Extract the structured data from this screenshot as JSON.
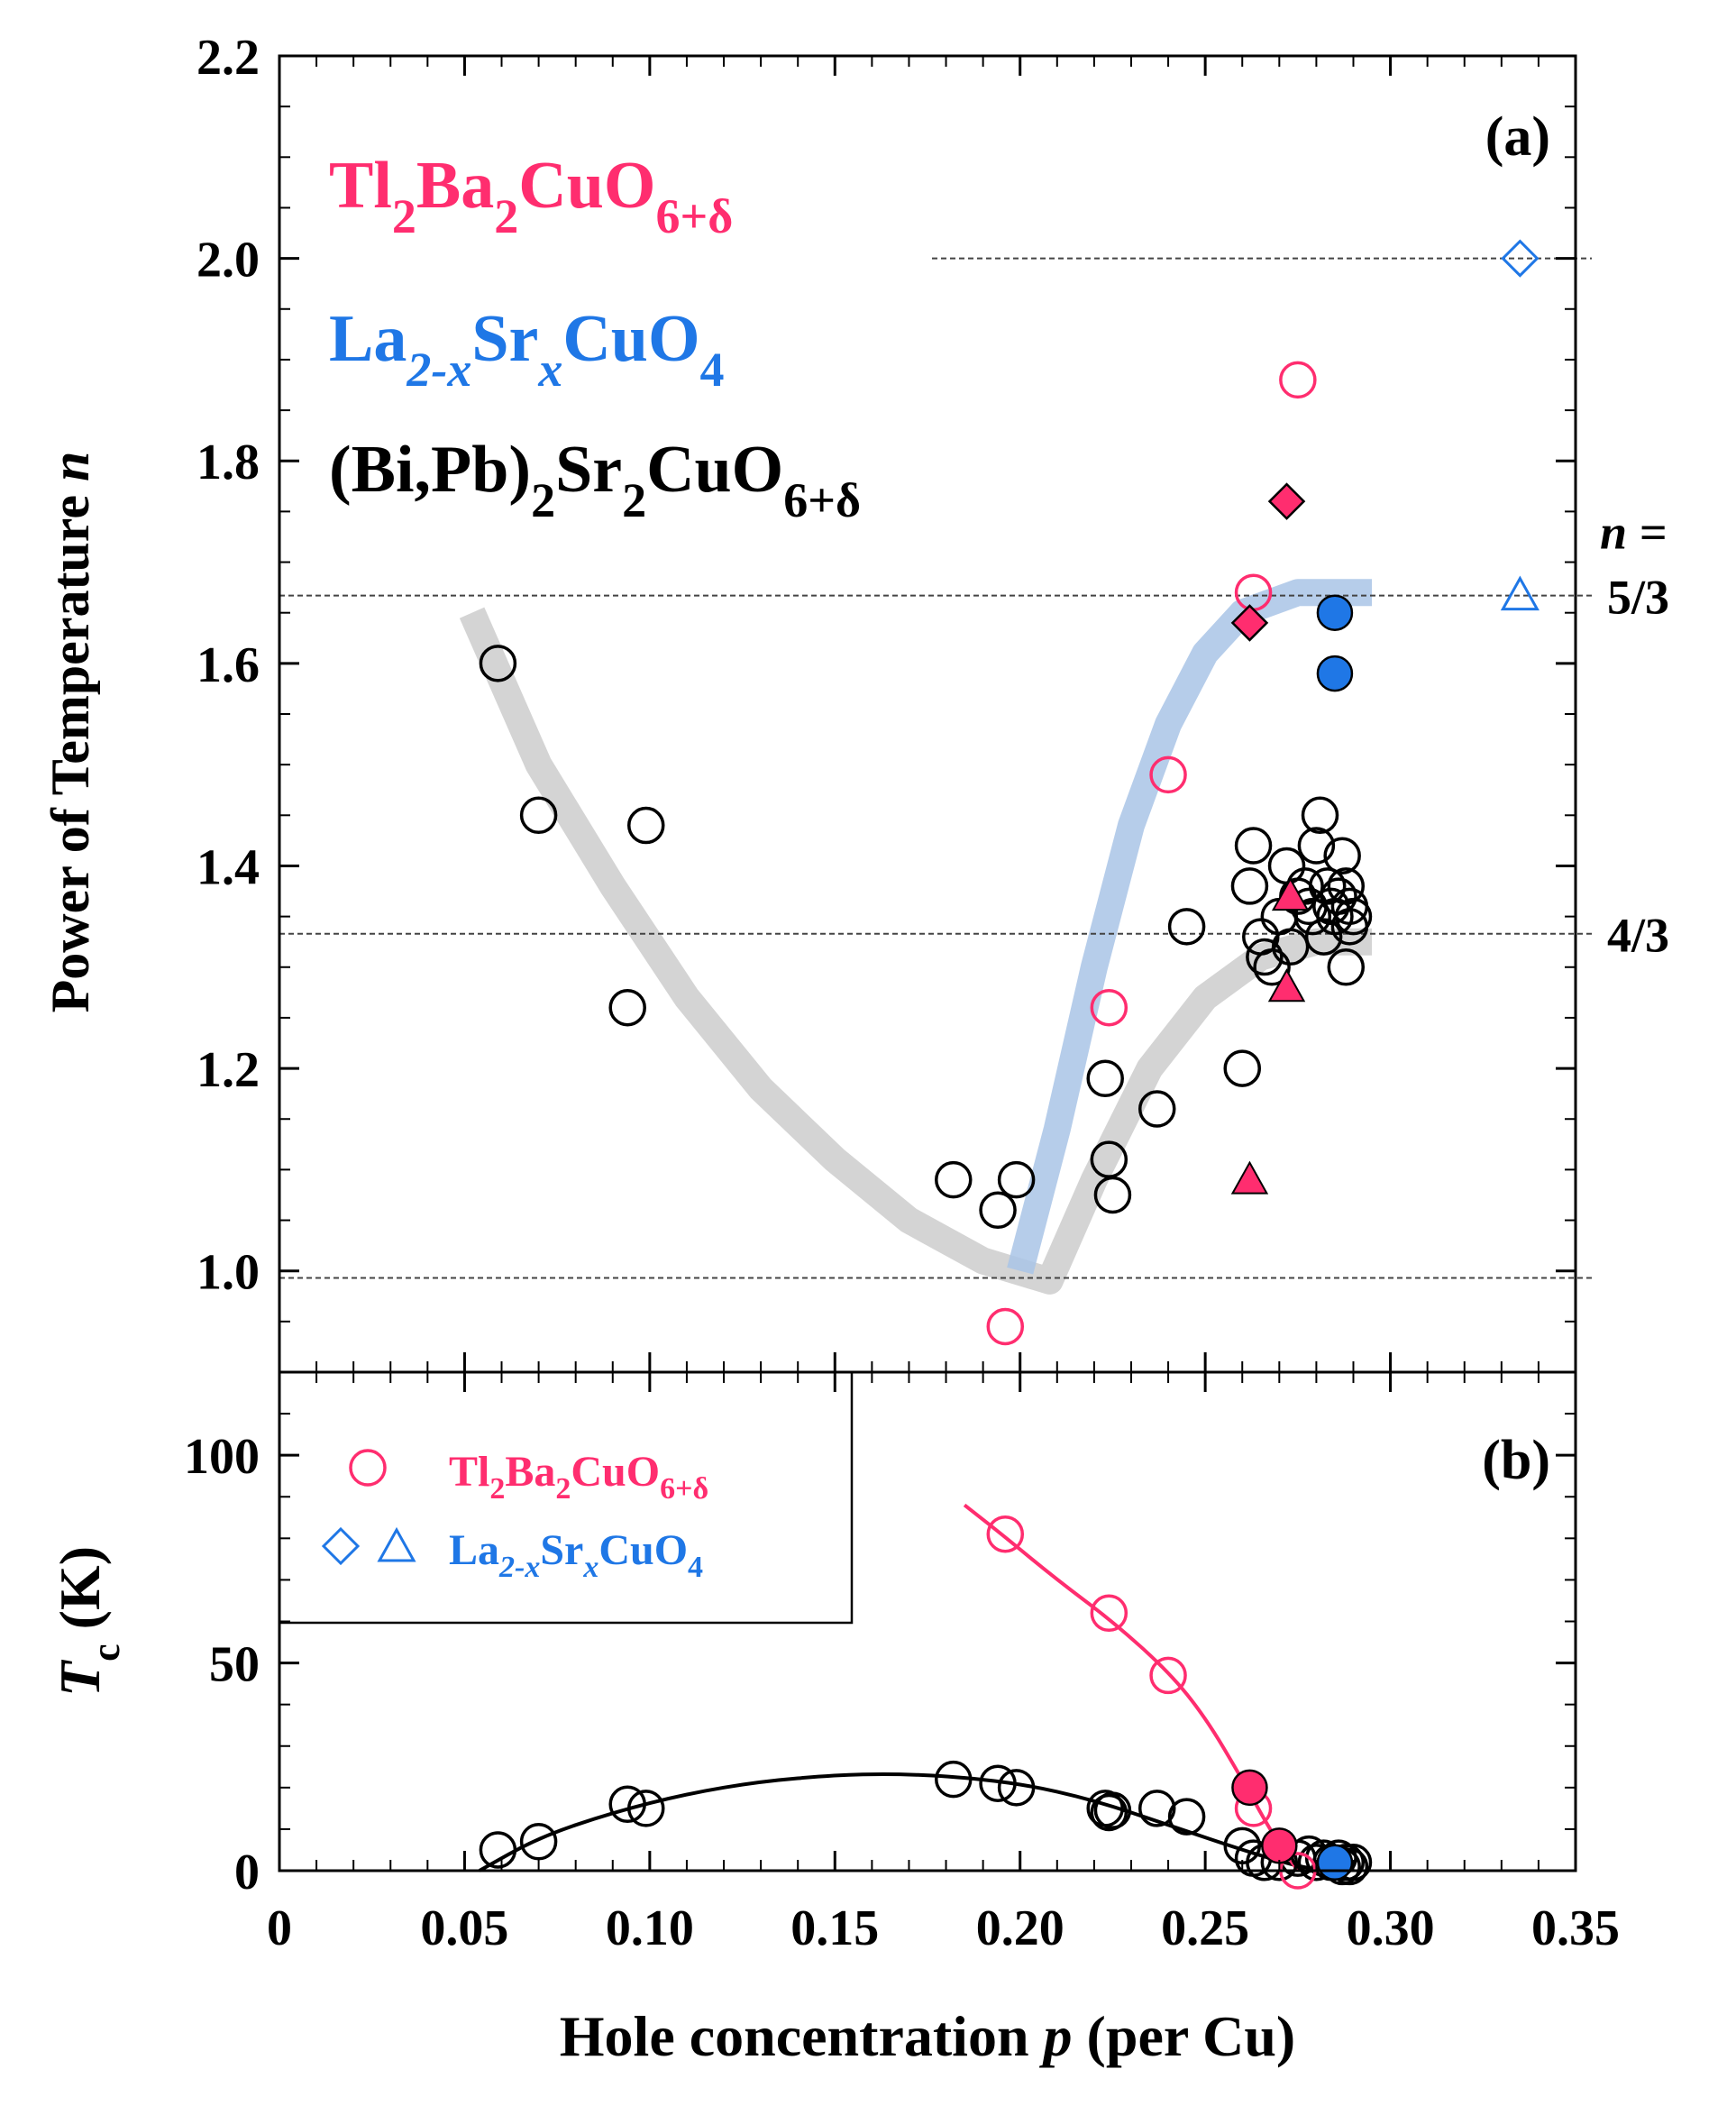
{
  "colors": {
    "tl": "#ff2d6f",
    "la": "#1f77e6",
    "bi": "#000000",
    "bi_band": "#cfcfcf",
    "la_band": "#a9c4e6"
  },
  "chart_data": [
    {
      "panel": "(a)",
      "type": "scatter",
      "ylabel": "Power of Temperature n",
      "ylabel_text": "Power of Temperature ",
      "ylabel_var": "n",
      "xlim": [
        0,
        0.35
      ],
      "ylim": [
        0.9,
        2.2
      ],
      "yticks": [
        1.0,
        1.2,
        1.4,
        1.6,
        1.8,
        2.0,
        2.2
      ],
      "ytick_labels": [
        "1.0",
        "1.2",
        "1.4",
        "1.6",
        "1.8",
        "2.0",
        "2.2"
      ],
      "reference_lines": [
        {
          "y": 2.0,
          "x_from": 0.175
        },
        {
          "y": 1.667,
          "label_var": "n =",
          "label": "5/3"
        },
        {
          "y": 1.333,
          "label": "4/3"
        },
        {
          "y": 0.993
        }
      ],
      "legend": [
        {
          "series": "Tl2Ba2CuO6+δ",
          "base": "Tl",
          "sub1": "2",
          "mid": "Ba",
          "sub2": "2",
          "mid2": "CuO",
          "sub3": "6+δ",
          "color": "#ff2d6f"
        },
        {
          "series": "La2-xSrxCuO4",
          "base": "La",
          "sub1": "2-x",
          "mid": "Sr",
          "sub2": "x",
          "mid2": "CuO",
          "sub3": "4",
          "color": "#1f77e6"
        },
        {
          "series": "(Bi,Pb)2Sr2CuO6+δ",
          "base": "(Bi,Pb)",
          "sub1": "2",
          "mid": "Sr",
          "sub2": "2",
          "mid2": "CuO",
          "sub3": "6+δ",
          "color": "#000000"
        }
      ],
      "trend_bands": [
        {
          "name": "Bi guide",
          "color": "#cfcfcf",
          "points": [
            [
              0.052,
              1.65
            ],
            [
              0.07,
              1.5
            ],
            [
              0.09,
              1.38
            ],
            [
              0.11,
              1.27
            ],
            [
              0.13,
              1.18
            ],
            [
              0.15,
              1.11
            ],
            [
              0.17,
              1.05
            ],
            [
              0.19,
              1.01
            ],
            [
              0.208,
              0.99
            ],
            [
              0.22,
              1.09
            ],
            [
              0.235,
              1.2
            ],
            [
              0.25,
              1.27
            ],
            [
              0.265,
              1.31
            ],
            [
              0.28,
              1.325
            ],
            [
              0.295,
              1.325
            ]
          ]
        },
        {
          "name": "LSCO guide",
          "color": "#a9c4e6",
          "points": [
            [
              0.2,
              1.0
            ],
            [
              0.21,
              1.14
            ],
            [
              0.22,
              1.3
            ],
            [
              0.23,
              1.44
            ],
            [
              0.24,
              1.54
            ],
            [
              0.25,
              1.61
            ],
            [
              0.26,
              1.65
            ],
            [
              0.275,
              1.67
            ],
            [
              0.295,
              1.67
            ]
          ]
        }
      ],
      "series": [
        {
          "name": "(Bi,Pb)2Sr2CuO6+δ",
          "marker": "open-circle",
          "color": "#000000",
          "points": [
            [
              0.059,
              1.6
            ],
            [
              0.07,
              1.45
            ],
            [
              0.094,
              1.26
            ],
            [
              0.099,
              1.44
            ],
            [
              0.182,
              1.09
            ],
            [
              0.194,
              1.06
            ],
            [
              0.199,
              1.09
            ],
            [
              0.223,
              1.19
            ],
            [
              0.224,
              1.11
            ],
            [
              0.225,
              1.075
            ],
            [
              0.237,
              1.16
            ],
            [
              0.245,
              1.34
            ],
            [
              0.26,
              1.2
            ],
            [
              0.262,
              1.38
            ],
            [
              0.263,
              1.42
            ],
            [
              0.265,
              1.33
            ],
            [
              0.266,
              1.31
            ],
            [
              0.268,
              1.3
            ],
            [
              0.27,
              1.35
            ],
            [
              0.272,
              1.4
            ],
            [
              0.273,
              1.32
            ],
            [
              0.275,
              1.37
            ],
            [
              0.277,
              1.38
            ],
            [
              0.278,
              1.36
            ],
            [
              0.279,
              1.35
            ],
            [
              0.28,
              1.42
            ],
            [
              0.281,
              1.45
            ],
            [
              0.282,
              1.33
            ],
            [
              0.283,
              1.38
            ],
            [
              0.284,
              1.36
            ],
            [
              0.285,
              1.35
            ],
            [
              0.286,
              1.37
            ],
            [
              0.287,
              1.41
            ],
            [
              0.288,
              1.38
            ],
            [
              0.289,
              1.36
            ],
            [
              0.29,
              1.35
            ],
            [
              0.288,
              1.3
            ],
            [
              0.289,
              1.34
            ]
          ]
        },
        {
          "name": "Tl2Ba2CuO6+δ",
          "marker": "open-circle",
          "color": "#ff2d6f",
          "points": [
            [
              0.196,
              0.945
            ],
            [
              0.224,
              1.26
            ],
            [
              0.24,
              1.49
            ],
            [
              0.263,
              1.67
            ],
            [
              0.275,
              1.88
            ]
          ]
        },
        {
          "name": "Tl2Ba2CuO6+δ",
          "marker": "filled-diamond",
          "color": "#ff2d6f",
          "points": [
            [
              0.262,
              1.64
            ],
            [
              0.272,
              1.76
            ]
          ]
        },
        {
          "name": "Tl2Ba2CuO6+δ",
          "marker": "filled-triangle",
          "color": "#ff2d6f",
          "points": [
            [
              0.262,
              1.09
            ],
            [
              0.272,
              1.28
            ],
            [
              0.273,
              1.37
            ]
          ]
        },
        {
          "name": "La2-xSrxCuO4",
          "marker": "filled-circle",
          "color": "#1f77e6",
          "points": [
            [
              0.285,
              1.65
            ],
            [
              0.285,
              1.59
            ]
          ]
        },
        {
          "name": "La2-xSrxCuO4",
          "marker": "open-diamond",
          "color": "#1f77e6",
          "points": [
            [
              0.335,
              2.0
            ]
          ]
        },
        {
          "name": "La2-xSrxCuO4",
          "marker": "open-triangle",
          "color": "#1f77e6",
          "points": [
            [
              0.335,
              1.667
            ]
          ]
        }
      ]
    },
    {
      "panel": "(b)",
      "type": "scatter",
      "ylabel": "Tc (K)",
      "ylabel_T": "T",
      "ylabel_sub": "c",
      "ylabel_unit": " (K)",
      "xlabel": "Hole concentration p (per Cu)",
      "xlabel_a": "Hole concentration ",
      "xlabel_var": "p",
      "xlabel_b": " (per Cu)",
      "xlim": [
        0,
        0.35
      ],
      "ylim": [
        0,
        120
      ],
      "xticks": [
        0,
        0.05,
        0.1,
        0.15,
        0.2,
        0.25,
        0.3,
        0.35
      ],
      "xtick_labels": [
        "0",
        "0.05",
        "0.10",
        "0.15",
        "0.20",
        "0.25",
        "0.30",
        "0.35"
      ],
      "yticks": [
        0,
        50,
        100
      ],
      "ytick_labels": [
        "0",
        "50",
        "100"
      ],
      "legend": [
        {
          "series": "Tl2Ba2CuO6+δ",
          "base": "Tl",
          "sub1": "2",
          "mid": "Ba",
          "sub2": "2",
          "mid2": "CuO",
          "sub3": "6+δ",
          "color": "#ff2d6f"
        },
        {
          "series": "La2-xSrxCuO4",
          "base": "La",
          "sub1": "2-x",
          "mid": "Sr",
          "sub2": "x",
          "mid2": "CuO",
          "sub3": "4",
          "color": "#1f77e6"
        }
      ],
      "fit_curves": [
        {
          "name": "Bi dome",
          "color": "#000000",
          "points": [
            [
              0.054,
              0
            ],
            [
              0.07,
              8
            ],
            [
              0.09,
              14
            ],
            [
              0.11,
              18.5
            ],
            [
              0.13,
              21.5
            ],
            [
              0.15,
              23
            ],
            [
              0.165,
              23.3
            ],
            [
              0.18,
              22.8
            ],
            [
              0.2,
              21
            ],
            [
              0.22,
              17
            ],
            [
              0.24,
              11
            ],
            [
              0.26,
              5
            ],
            [
              0.275,
              1
            ],
            [
              0.283,
              0
            ]
          ]
        },
        {
          "name": "Tl curve",
          "color": "#ff2d6f",
          "points": [
            [
              0.185,
              88
            ],
            [
              0.195,
              81
            ],
            [
              0.21,
              70
            ],
            [
              0.225,
              60
            ],
            [
              0.24,
              48
            ],
            [
              0.25,
              37
            ],
            [
              0.26,
              22
            ],
            [
              0.268,
              9
            ],
            [
              0.275,
              0
            ]
          ]
        }
      ],
      "series": [
        {
          "name": "(Bi,Pb)2Sr2CuO6+δ",
          "marker": "open-circle",
          "color": "#000000",
          "points": [
            [
              0.059,
              5
            ],
            [
              0.07,
              7
            ],
            [
              0.094,
              16
            ],
            [
              0.099,
              15
            ],
            [
              0.182,
              22
            ],
            [
              0.194,
              21
            ],
            [
              0.199,
              20
            ],
            [
              0.223,
              15
            ],
            [
              0.224,
              14
            ],
            [
              0.225,
              14.5
            ],
            [
              0.237,
              15
            ],
            [
              0.245,
              13
            ],
            [
              0.26,
              6
            ],
            [
              0.263,
              3
            ],
            [
              0.266,
              2
            ],
            [
              0.27,
              2
            ],
            [
              0.275,
              3
            ],
            [
              0.278,
              4
            ],
            [
              0.28,
              2
            ],
            [
              0.282,
              3
            ],
            [
              0.284,
              2
            ],
            [
              0.286,
              3
            ],
            [
              0.288,
              2
            ],
            [
              0.29,
              2
            ],
            [
              0.287,
              1
            ],
            [
              0.289,
              1
            ]
          ]
        },
        {
          "name": "Tl2Ba2CuO6+δ",
          "marker": "open-circle",
          "color": "#ff2d6f",
          "points": [
            [
              0.196,
              81
            ],
            [
              0.224,
              62
            ],
            [
              0.24,
              47
            ],
            [
              0.263,
              15
            ],
            [
              0.275,
              0
            ]
          ]
        },
        {
          "name": "Tl2Ba2CuO6+δ",
          "marker": "filled-circle",
          "color": "#ff2d6f",
          "points": [
            [
              0.262,
              20
            ],
            [
              0.27,
              6
            ]
          ]
        },
        {
          "name": "La2-xSrxCuO4",
          "marker": "filled-circle",
          "color": "#1f77e6",
          "points": [
            [
              0.285,
              2
            ]
          ]
        }
      ]
    }
  ]
}
